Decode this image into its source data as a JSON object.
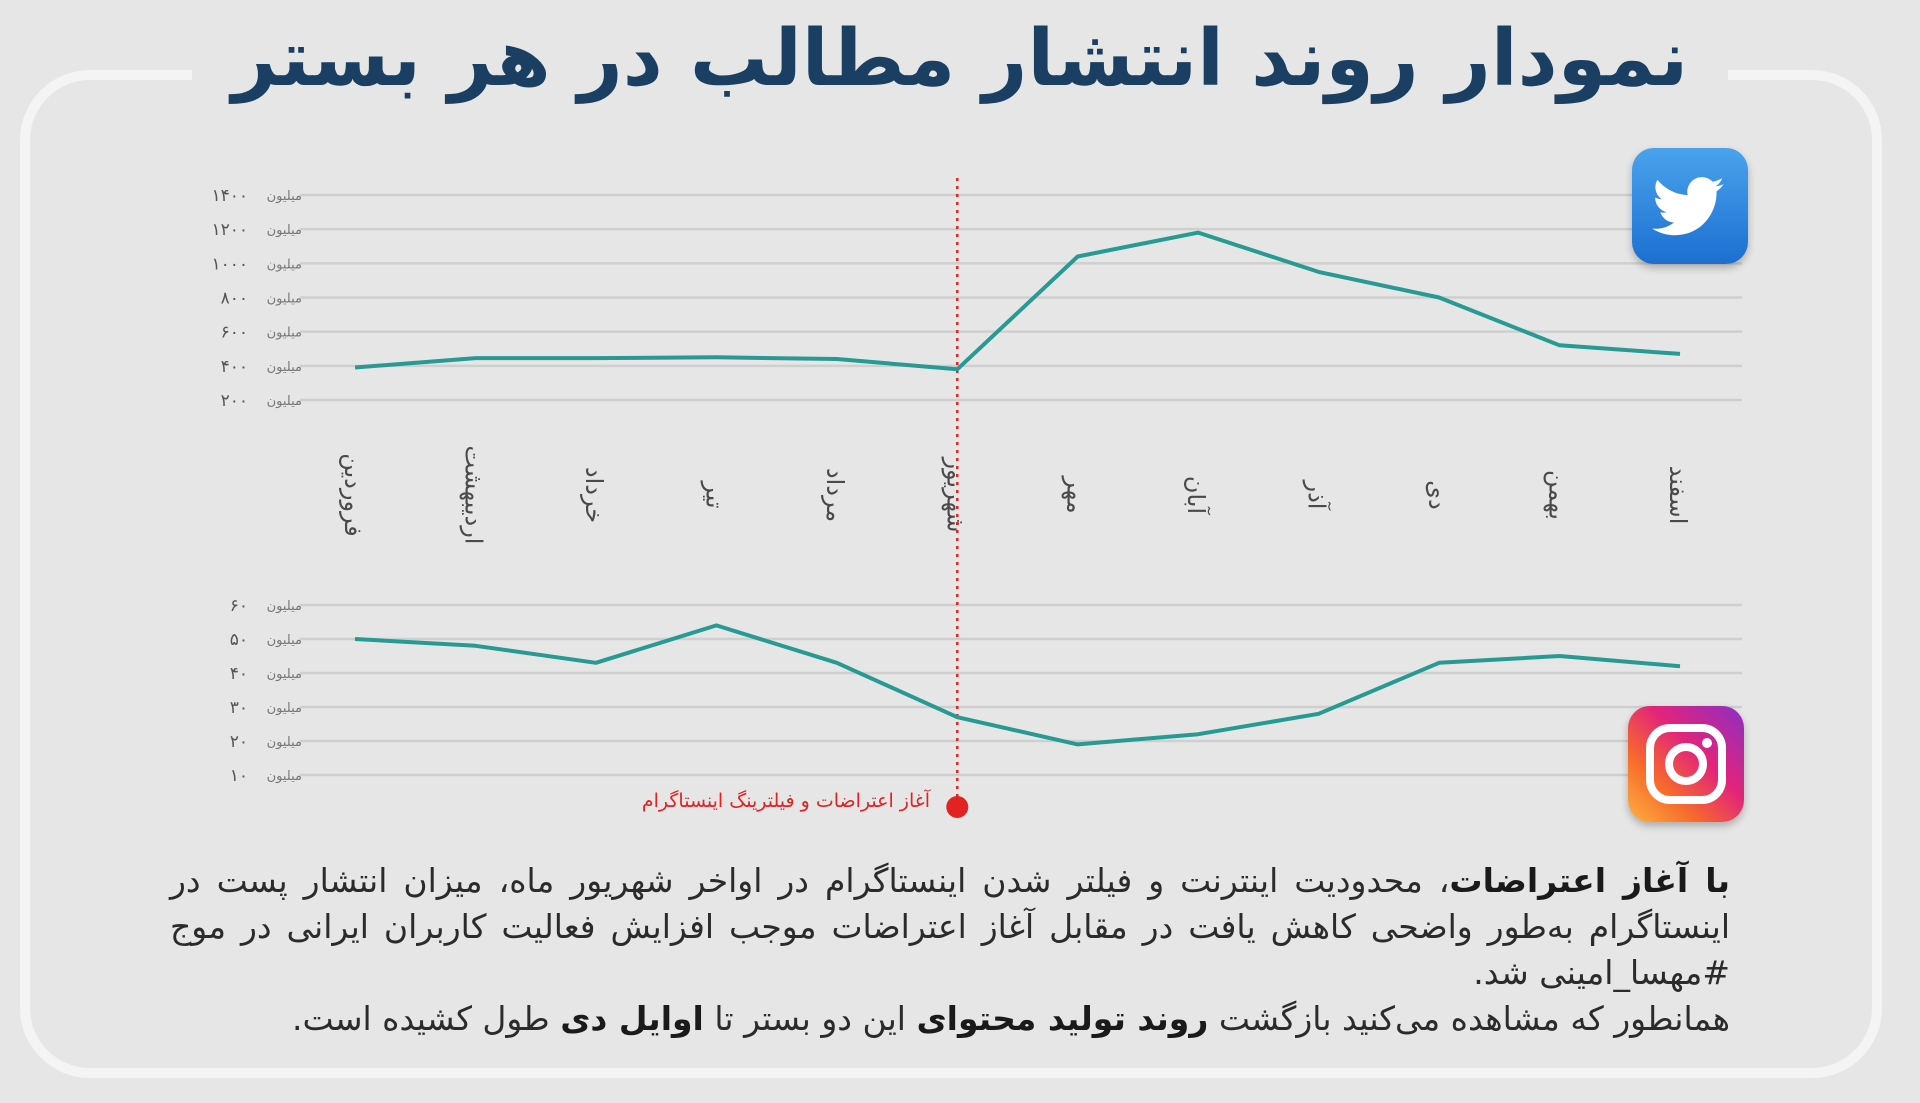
{
  "header": {
    "title": "نمودار روند انتشار مطالب در هر بستر"
  },
  "colors": {
    "title": "#1b3f63",
    "line": "#279a93",
    "grid": "#cfcfcf",
    "marker": "#e32222"
  },
  "icons": {
    "top_platform": "twitter-icon",
    "bottom_platform": "instagram-icon"
  },
  "marker": {
    "label": "آغاز اعتراضات و فیلترینگ اینستاگرام",
    "month": "شهریور"
  },
  "chart_data": [
    {
      "type": "line",
      "platform": "twitter",
      "x": [
        "فروردین",
        "اردیبهشت",
        "خرداد",
        "تیر",
        "مرداد",
        "شهریور",
        "مهر",
        "آبان",
        "آذر",
        "دی",
        "بهمن",
        "اسفند"
      ],
      "values": [
        390,
        445,
        445,
        450,
        440,
        380,
        1040,
        1180,
        950,
        800,
        520,
        470
      ],
      "yticks": [
        {
          "v": 200,
          "label": "۲۰۰",
          "unit": "میلیون"
        },
        {
          "v": 400,
          "label": "۴۰۰",
          "unit": "میلیون"
        },
        {
          "v": 600,
          "label": "۶۰۰",
          "unit": "میلیون"
        },
        {
          "v": 800,
          "label": "۸۰۰",
          "unit": "میلیون"
        },
        {
          "v": 1000,
          "label": "۱۰۰۰",
          "unit": "میلیون"
        },
        {
          "v": 1200,
          "label": "۱۲۰۰",
          "unit": "میلیون"
        },
        {
          "v": 1400,
          "label": "۱۴۰۰",
          "unit": "میلیون"
        }
      ],
      "ylim": [
        200,
        1400
      ]
    },
    {
      "type": "line",
      "platform": "instagram",
      "x": [
        "فروردین",
        "اردیبهشت",
        "خرداد",
        "تیر",
        "مرداد",
        "شهریور",
        "مهر",
        "آبان",
        "آذر",
        "دی",
        "بهمن",
        "اسفند"
      ],
      "values": [
        50,
        48,
        43,
        54,
        43,
        27,
        19,
        22,
        28,
        43,
        45,
        42
      ],
      "yticks": [
        {
          "v": 10,
          "label": "۱۰",
          "unit": "میلیون"
        },
        {
          "v": 20,
          "label": "۲۰",
          "unit": "میلیون"
        },
        {
          "v": 30,
          "label": "۳۰",
          "unit": "میلیون"
        },
        {
          "v": 40,
          "label": "۴۰",
          "unit": "میلیون"
        },
        {
          "v": 50,
          "label": "۵۰",
          "unit": "میلیون"
        },
        {
          "v": 60,
          "label": "۶۰",
          "unit": "میلیون"
        }
      ],
      "ylim": [
        10,
        60
      ]
    }
  ],
  "caption": {
    "p1_bold": "با آغاز اعتراضات",
    "p1_rest": "، محدودیت اینترنت و فیلتر شدن اینستاگرام در اواخر شهریور ماه، میزان انتشار پست در اینستاگرام به‌طور واضحی کاهش یافت در مقابل آغاز اعتراضات موجب افزایش فعالیت کاربران ایرانی در موج #مهسا_امینی شد.",
    "p2_a": "همانطور که مشاهده می‌کنید بازگشت ",
    "p2_bold1": "روند تولید محتوای",
    "p2_b": " این دو بستر تا ",
    "p2_bold2": "اوایل دی",
    "p2_c": " طول کشیده است."
  }
}
